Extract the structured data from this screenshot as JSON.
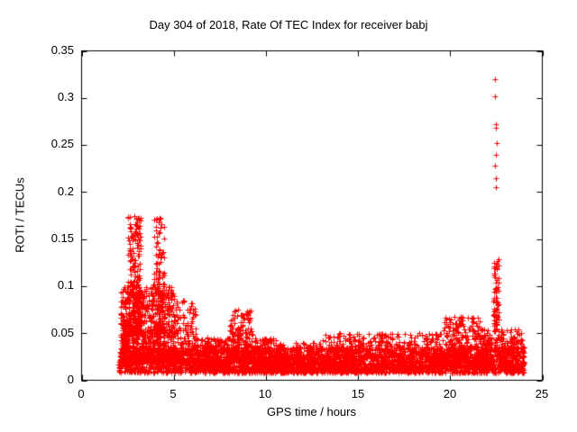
{
  "title": "Day 304 of 2018, Rate Of TEC Index for receiver babj",
  "chart_data": {
    "type": "scatter",
    "title": "Day 304 of 2018, Rate Of TEC Index for receiver babj",
    "xlabel": "GPS time / hours",
    "ylabel": "ROTI / TECUs",
    "xlim": [
      0,
      25
    ],
    "ylim": [
      0,
      0.35
    ],
    "xticks": [
      0,
      5,
      10,
      15,
      20,
      25
    ],
    "yticks": [
      0,
      0.05,
      0.1,
      0.15,
      0.2,
      0.25,
      0.3,
      0.35
    ],
    "xtick_labels": [
      "0",
      "5",
      "10",
      "15",
      "20",
      "25"
    ],
    "ytick_labels": [
      "0",
      "0.05",
      "0.1",
      "0.15",
      "0.2",
      "0.25",
      "0.3",
      "0.35"
    ],
    "grid": false,
    "legend": "none",
    "marker": "plus-cross",
    "marker_color": "#ff0000",
    "axis_color": "#000000",
    "seed": 20181304,
    "description": "Dense red '+' scatter: baseline ROTI 0.01-0.035 from hour 2 to 24; strong activity hours 2.5-5 peaking near 0.175; moderate bump near 8.5 (to 0.075); minor bumps through 13-21; isolated high spike cluster near hour 22.5 reaching 0.32.",
    "clusters": [
      {
        "x0": 2.0,
        "x1": 24.0,
        "y0": 0.008,
        "y1": 0.035,
        "n": 2600,
        "shape": 1.4
      },
      {
        "x0": 2.1,
        "x1": 5.1,
        "y0": 0.02,
        "y1": 0.1,
        "n": 900,
        "shape": 2.2
      },
      {
        "x0": 2.5,
        "x1": 3.2,
        "y0": 0.05,
        "y1": 0.175,
        "n": 260,
        "shape": 1.8
      },
      {
        "x0": 3.9,
        "x1": 4.5,
        "y0": 0.05,
        "y1": 0.175,
        "n": 160,
        "shape": 2.0
      },
      {
        "x0": 2.2,
        "x1": 2.5,
        "y0": 0.03,
        "y1": 0.065,
        "n": 80,
        "shape": 1.5
      },
      {
        "x0": 5.1,
        "x1": 6.2,
        "y0": 0.02,
        "y1": 0.085,
        "n": 220,
        "shape": 2.2
      },
      {
        "x0": 6.2,
        "x1": 8.0,
        "y0": 0.012,
        "y1": 0.045,
        "n": 300,
        "shape": 1.8
      },
      {
        "x0": 8.0,
        "x1": 9.3,
        "y0": 0.02,
        "y1": 0.075,
        "n": 260,
        "shape": 2.0
      },
      {
        "x0": 9.3,
        "x1": 10.6,
        "y0": 0.012,
        "y1": 0.045,
        "n": 220,
        "shape": 1.8
      },
      {
        "x0": 10.6,
        "x1": 13.0,
        "y0": 0.01,
        "y1": 0.04,
        "n": 300,
        "shape": 1.5
      },
      {
        "x0": 13.0,
        "x1": 16.0,
        "y0": 0.01,
        "y1": 0.05,
        "n": 350,
        "shape": 2.0
      },
      {
        "x0": 16.0,
        "x1": 19.5,
        "y0": 0.012,
        "y1": 0.05,
        "n": 420,
        "shape": 1.8
      },
      {
        "x0": 19.5,
        "x1": 21.6,
        "y0": 0.015,
        "y1": 0.068,
        "n": 320,
        "shape": 2.0
      },
      {
        "x0": 21.6,
        "x1": 22.3,
        "y0": 0.015,
        "y1": 0.055,
        "n": 150,
        "shape": 1.8
      },
      {
        "x0": 22.35,
        "x1": 22.65,
        "y0": 0.03,
        "y1": 0.13,
        "n": 90,
        "shape": 1.3
      },
      {
        "x0": 22.7,
        "x1": 24.0,
        "y0": 0.012,
        "y1": 0.055,
        "n": 260,
        "shape": 1.8
      }
    ],
    "outliers": [
      [
        22.45,
        0.32
      ],
      [
        22.43,
        0.302
      ],
      [
        22.5,
        0.272
      ],
      [
        22.47,
        0.268
      ],
      [
        22.52,
        0.252
      ],
      [
        22.49,
        0.24
      ],
      [
        22.44,
        0.228
      ],
      [
        22.5,
        0.215
      ],
      [
        22.46,
        0.205
      ],
      [
        22.55,
        0.118
      ],
      [
        22.4,
        0.125
      ]
    ]
  }
}
